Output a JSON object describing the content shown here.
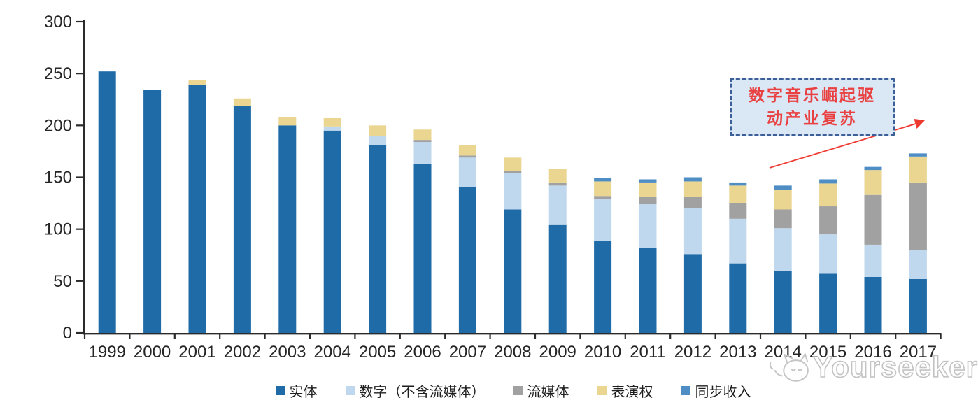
{
  "chart_data": {
    "type": "bar",
    "stacked": true,
    "categories": [
      "1999",
      "2000",
      "2001",
      "2002",
      "2003",
      "2004",
      "2005",
      "2006",
      "2007",
      "2008",
      "2009",
      "2010",
      "2011",
      "2012",
      "2013",
      "2014",
      "2015",
      "2016",
      "2017"
    ],
    "series": [
      {
        "name": "实体",
        "color": "#1E6BA8",
        "values": [
          252,
          234,
          239,
          219,
          200,
          195,
          181,
          163,
          141,
          119,
          104,
          89,
          82,
          76,
          67,
          60,
          57,
          54,
          52
        ]
      },
      {
        "name": "数字（不含流媒体）",
        "color": "#BFD8EE",
        "values": [
          0,
          0,
          0,
          0,
          0,
          4,
          9,
          21,
          28,
          35,
          38,
          40,
          42,
          44,
          43,
          41,
          38,
          31,
          28
        ]
      },
      {
        "name": "流媒体",
        "color": "#A1A1A1",
        "values": [
          0,
          0,
          0,
          0,
          0,
          0,
          0,
          2,
          2,
          2,
          3,
          3,
          7,
          11,
          15,
          18,
          27,
          48,
          65
        ]
      },
      {
        "name": "表演权",
        "color": "#EAD691",
        "values": [
          0,
          0,
          5,
          7,
          8,
          8,
          10,
          10,
          10,
          13,
          13,
          14,
          14,
          15,
          17,
          19,
          22,
          24,
          25
        ]
      },
      {
        "name": "同步收入",
        "color": "#4F8EC5",
        "values": [
          0,
          0,
          0,
          0,
          0,
          0,
          0,
          0,
          0,
          0,
          0,
          3,
          3,
          4,
          3,
          4,
          4,
          3,
          3
        ]
      }
    ],
    "ylim": [
      0,
      300
    ],
    "yticks": [
      0,
      50,
      100,
      150,
      200,
      250,
      300
    ],
    "grid": false,
    "legend_position": "bottom"
  },
  "annotation": {
    "line1": "数字音乐崛起驱",
    "line2": "动产业复苏"
  },
  "watermark": {
    "text": "Yourseeker"
  },
  "colors": {
    "axis": "#2b2b2b",
    "tick_label": "#262626",
    "annotation_text": "#e94141",
    "arrow": "#ed3a30"
  }
}
